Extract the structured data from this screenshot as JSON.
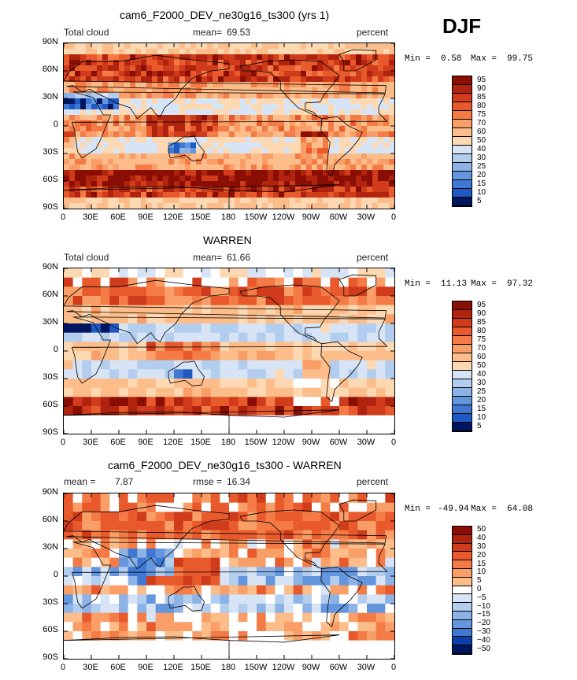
{
  "season": "DJF",
  "colors": {
    "pos": [
      "#fff4e6",
      "#fdd9b3",
      "#fcbd8a",
      "#f99e66",
      "#f47b45",
      "#e8592c",
      "#cf3b1b",
      "#b0240f",
      "#8b0e04"
    ],
    "neg": [
      "#ffffff",
      "#d6e4f6",
      "#b3cdee",
      "#8cb2e6",
      "#6496dd",
      "#3f78d3",
      "#1f5ac4",
      "#0c3fa8",
      "#032886",
      "#011661"
    ]
  },
  "chart_data": [
    {
      "type": "heatmap",
      "title": "cam6_F2000_DEV_ne30g16_ts300 (yrs 1)",
      "variable": "Total cloud",
      "stat_label": "mean=",
      "stat_value": "69.53",
      "units": "percent",
      "min_label": "Min =",
      "min": "0.58",
      "max_label": "Max =",
      "max": "99.75",
      "xlabels": [
        "0",
        "30E",
        "60E",
        "90E",
        "120E",
        "150E",
        "180",
        "150W",
        "120W",
        "90W",
        "60W",
        "30W",
        "0"
      ],
      "ylabels": [
        "90N",
        "60N",
        "30N",
        "0",
        "30S",
        "60S",
        "90S"
      ],
      "levels": [
        "95",
        "90",
        "85",
        "80",
        "75",
        "70",
        "60",
        "50",
        "40",
        "30",
        "25",
        "20",
        "15",
        "10",
        "5"
      ]
    },
    {
      "type": "heatmap",
      "title": "WARREN",
      "variable": "Total cloud",
      "stat_label": "mean=",
      "stat_value": "61.66",
      "units": "percent",
      "min_label": "Min =",
      "min": "11.13",
      "max_label": "Max =",
      "max": "97.32",
      "xlabels": [
        "0",
        "30E",
        "60E",
        "90E",
        "120E",
        "150E",
        "180",
        "150W",
        "120W",
        "90W",
        "60W",
        "30W",
        "0"
      ],
      "ylabels": [
        "90N",
        "60N",
        "30N",
        "0",
        "30S",
        "60S",
        "90S"
      ],
      "levels": [
        "95",
        "90",
        "85",
        "80",
        "75",
        "70",
        "60",
        "50",
        "40",
        "30",
        "25",
        "20",
        "15",
        "10",
        "5"
      ]
    },
    {
      "type": "heatmap",
      "title": "cam6_F2000_DEV_ne30g16_ts300 - WARREN",
      "variable": "mean =",
      "stat_label": "rmse =",
      "stat_value": "16.34",
      "mean_value": "7.87",
      "units": "percent",
      "min_label": "Min =",
      "min": "-49.94",
      "max_label": "Max =",
      "max": "64.08",
      "xlabels": [
        "0",
        "30E",
        "60E",
        "90E",
        "120E",
        "150E",
        "180",
        "150W",
        "120W",
        "90W",
        "60W",
        "30W",
        "0"
      ],
      "ylabels": [
        "90N",
        "60N",
        "30N",
        "0",
        "30S",
        "60S",
        "90S"
      ],
      "levels": [
        "50",
        "40",
        "30",
        "20",
        "15",
        "10",
        "5",
        "0",
        "−5",
        "−10",
        "−15",
        "−20",
        "−30",
        "−40",
        "−50"
      ]
    }
  ]
}
